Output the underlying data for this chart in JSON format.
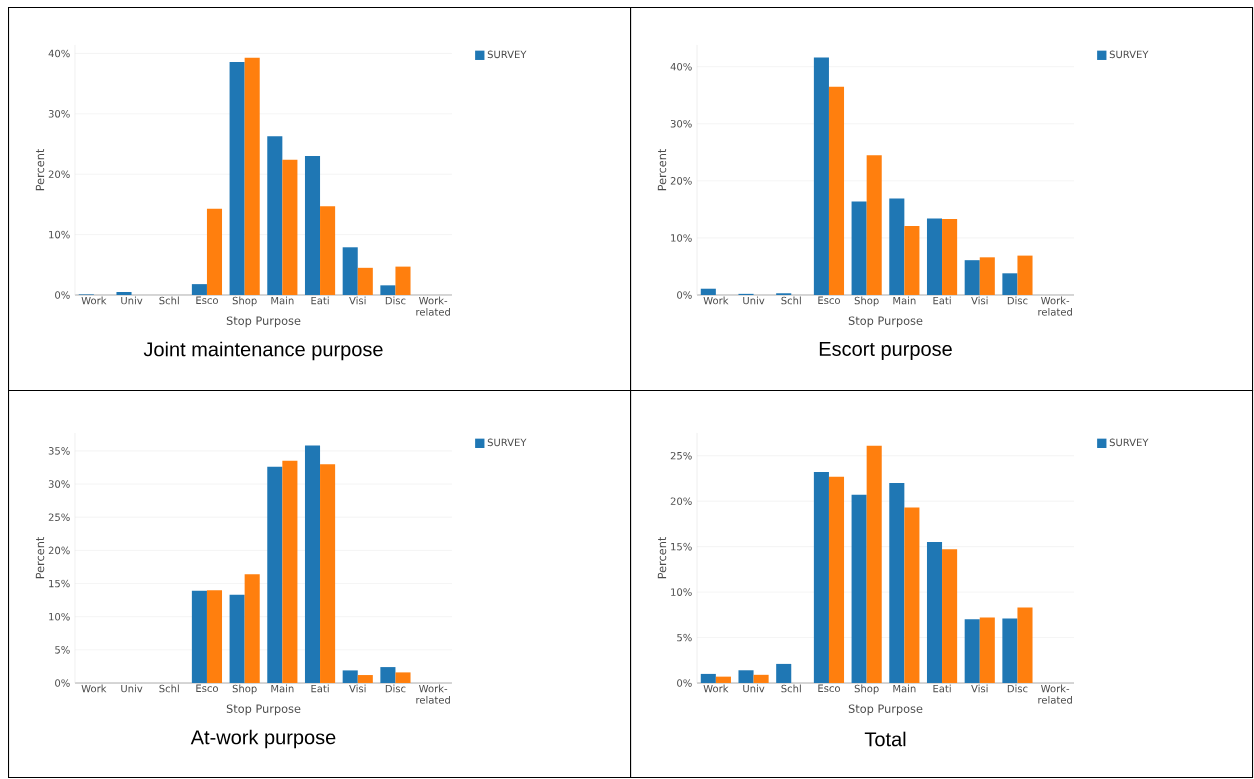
{
  "chart_data": [
    {
      "type": "bar",
      "title": "Joint maintenance purpose",
      "xlabel": "Stop Purpose",
      "ylabel": "Percent",
      "categories": [
        "Work",
        "Univ",
        "Schl",
        "Esco",
        "Shop",
        "Main",
        "Eati",
        "Visi",
        "Disc",
        "Work-related"
      ],
      "series": [
        {
          "name": "SURVEY",
          "color": "#1f77b4",
          "values": [
            0.1,
            0.5,
            0,
            1.8,
            38.6,
            26.3,
            23.0,
            7.9,
            1.6,
            0
          ]
        },
        {
          "color": "#ff7f0e",
          "values": [
            0,
            0,
            0,
            14.3,
            39.3,
            22.4,
            14.7,
            4.5,
            4.7,
            0
          ]
        }
      ],
      "ylim": [
        0,
        41.4
      ],
      "yticks": [
        {
          "value": 0,
          "label": "0%"
        },
        {
          "value": 10,
          "label": "10%"
        },
        {
          "value": 20,
          "label": "20%"
        },
        {
          "value": 30,
          "label": "30%"
        },
        {
          "value": 40,
          "label": "40%"
        }
      ],
      "grid": "y",
      "legend": "top right"
    },
    {
      "type": "bar",
      "title": "Escort purpose",
      "xlabel": "Stop Purpose",
      "ylabel": "Percent",
      "categories": [
        "Work",
        "Univ",
        "Schl",
        "Esco",
        "Shop",
        "Main",
        "Eati",
        "Visi",
        "Disc",
        "Work-related"
      ],
      "series": [
        {
          "name": "SURVEY",
          "color": "#1f77b4",
          "values": [
            1.1,
            0.2,
            0.3,
            41.6,
            16.4,
            16.9,
            13.4,
            6.1,
            3.8,
            0
          ]
        },
        {
          "color": "#ff7f0e",
          "values": [
            0,
            0,
            0,
            36.5,
            24.5,
            12.1,
            13.3,
            6.6,
            6.9,
            0
          ]
        }
      ],
      "ylim": [
        0,
        43.8
      ],
      "yticks": [
        {
          "value": 0,
          "label": "0%"
        },
        {
          "value": 10,
          "label": "10%"
        },
        {
          "value": 20,
          "label": "20%"
        },
        {
          "value": 30,
          "label": "30%"
        },
        {
          "value": 40,
          "label": "40%"
        }
      ],
      "grid": "y",
      "legend": "top right"
    },
    {
      "type": "bar",
      "title": "At-work purpose",
      "xlabel": "Stop Purpose",
      "ylabel": "Percent",
      "categories": [
        "Work",
        "Univ",
        "Schl",
        "Esco",
        "Shop",
        "Main",
        "Eati",
        "Visi",
        "Disc",
        "Work-related"
      ],
      "series": [
        {
          "name": "SURVEY",
          "color": "#1f77b4",
          "values": [
            0,
            0,
            0,
            13.9,
            13.3,
            32.6,
            35.8,
            1.9,
            2.4,
            0
          ]
        },
        {
          "color": "#ff7f0e",
          "values": [
            0,
            0,
            0,
            14.0,
            16.4,
            33.5,
            33.0,
            1.2,
            1.6,
            0
          ]
        }
      ],
      "ylim": [
        0,
        37.7
      ],
      "yticks": [
        {
          "value": 0,
          "label": "0%"
        },
        {
          "value": 5,
          "label": "5%"
        },
        {
          "value": 10,
          "label": "10%"
        },
        {
          "value": 15,
          "label": "15%"
        },
        {
          "value": 20,
          "label": "20%"
        },
        {
          "value": 25,
          "label": "25%"
        },
        {
          "value": 30,
          "label": "30%"
        },
        {
          "value": 35,
          "label": "35%"
        }
      ],
      "grid": "y",
      "legend": "top right"
    },
    {
      "type": "bar",
      "title": "Total",
      "xlabel": "Stop Purpose",
      "ylabel": "Percent",
      "categories": [
        "Work",
        "Univ",
        "Schl",
        "Esco",
        "Shop",
        "Main",
        "Eati",
        "Visi",
        "Disc",
        "Work-related"
      ],
      "series": [
        {
          "name": "SURVEY",
          "color": "#1f77b4",
          "values": [
            1.0,
            1.4,
            2.1,
            23.2,
            20.7,
            22.0,
            15.5,
            7.0,
            7.1,
            0
          ]
        },
        {
          "color": "#ff7f0e",
          "values": [
            0.7,
            0.9,
            0,
            22.7,
            26.1,
            19.3,
            14.7,
            7.2,
            8.3,
            0
          ]
        }
      ],
      "ylim": [
        0,
        27.5
      ],
      "yticks": [
        {
          "value": 0,
          "label": "0%"
        },
        {
          "value": 5,
          "label": "5%"
        },
        {
          "value": 10,
          "label": "10%"
        },
        {
          "value": 15,
          "label": "15%"
        },
        {
          "value": 20,
          "label": "20%"
        },
        {
          "value": 25,
          "label": "25%"
        }
      ],
      "grid": "y",
      "legend": "top right"
    }
  ]
}
